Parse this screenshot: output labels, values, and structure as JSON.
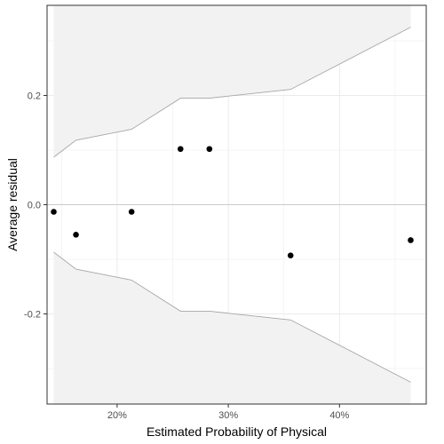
{
  "chart_data": {
    "type": "scatter",
    "title": "",
    "xlabel": "Estimated Probability of Physical",
    "ylabel": "Average residual",
    "xlim": [
      0.137,
      0.478
    ],
    "ylim": [
      -0.365,
      0.365
    ],
    "grid": true,
    "x_ticks": [
      {
        "value": 0.2,
        "label": "20%"
      },
      {
        "value": 0.3,
        "label": "30%"
      },
      {
        "value": 0.4,
        "label": "40%"
      }
    ],
    "y_ticks": [
      {
        "value": 0.2,
        "label": "0.2"
      },
      {
        "value": 0.0,
        "label": "0.0"
      },
      {
        "value": -0.2,
        "label": "-0.2"
      }
    ],
    "points": [
      {
        "x": 0.143,
        "y": -0.013
      },
      {
        "x": 0.163,
        "y": -0.055
      },
      {
        "x": 0.213,
        "y": -0.013
      },
      {
        "x": 0.257,
        "y": 0.102
      },
      {
        "x": 0.283,
        "y": 0.102
      },
      {
        "x": 0.356,
        "y": -0.093
      },
      {
        "x": 0.464,
        "y": -0.065
      }
    ],
    "bound_x": [
      0.143,
      0.163,
      0.213,
      0.257,
      0.283,
      0.356,
      0.464
    ],
    "upper_bound": [
      0.087,
      0.118,
      0.138,
      0.195,
      0.195,
      0.211,
      0.325
    ],
    "lower_bound": [
      -0.087,
      -0.118,
      -0.138,
      -0.195,
      -0.195,
      -0.211,
      -0.325
    ],
    "colors": {
      "points": "#000000",
      "bounds": "#a6a6a6",
      "band_fill": "#f2f2f2",
      "grid": "#ebebeb",
      "panel_border": "#333333"
    }
  }
}
